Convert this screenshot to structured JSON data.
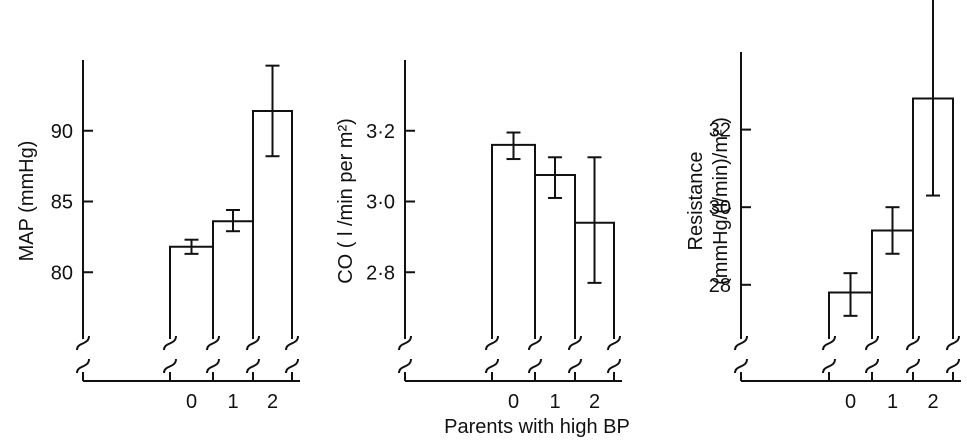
{
  "shared_xlabel": "Parents with high BP",
  "chart_data": [
    {
      "type": "bar",
      "ylabel": "MAP  (mmHg)",
      "ylabel_lines": [
        "MAP  (mmHg)"
      ],
      "categories": [
        "0",
        "1",
        "2"
      ],
      "values": [
        81.8,
        83.6,
        91.4
      ],
      "error_low": [
        81.3,
        82.9,
        88.2
      ],
      "error_high": [
        82.3,
        84.4,
        94.6
      ],
      "ylim": [
        75,
        95
      ],
      "yticks": [
        80,
        85,
        90
      ],
      "ytick_labels": [
        "80",
        "85",
        "90"
      ],
      "axis_break": true
    },
    {
      "type": "bar",
      "ylabel": "CO  ( l /min per m²)",
      "ylabel_lines": [
        "CO  ( l /min per m²)"
      ],
      "categories": [
        "0",
        "1",
        "2"
      ],
      "values": [
        3.16,
        3.075,
        2.94
      ],
      "error_low": [
        3.12,
        3.01,
        2.77
      ],
      "error_high": [
        3.195,
        3.125,
        3.125
      ],
      "ylim": [
        2.6,
        3.4
      ],
      "yticks": [
        2.8,
        3.0,
        3.2
      ],
      "ytick_labels": [
        "2·8",
        "3·0",
        "3·2"
      ],
      "axis_break": true
    },
    {
      "type": "bar",
      "ylabel": "Resistance (mmHg/(l/min)/m² )",
      "ylabel_lines": [
        "Resistance",
        "(mmHg/(l/min)/m² )"
      ],
      "categories": [
        "0",
        "1",
        "2"
      ],
      "values": [
        27.8,
        29.4,
        32.8
      ],
      "error_low": [
        27.2,
        28.8,
        30.3
      ],
      "error_high": [
        28.3,
        30.0,
        35.4
      ],
      "ylim": [
        26.5,
        34
      ],
      "yticks": [
        28,
        30,
        32
      ],
      "ytick_labels": [
        "28",
        "30",
        "32"
      ],
      "axis_break": true
    }
  ]
}
